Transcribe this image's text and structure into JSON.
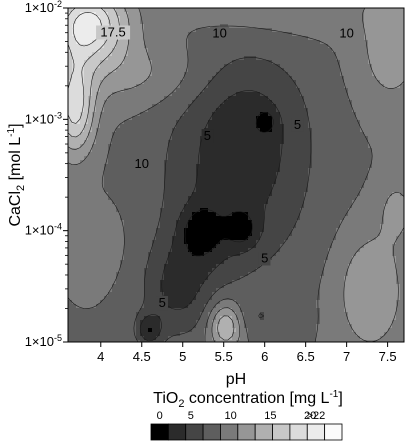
{
  "chart_data": {
    "type": "filled-contour",
    "title": "",
    "xlabel": "pH",
    "ylabel": "CaCl₂ [mol L⁻¹]",
    "ylabel_text": "CaCl",
    "ylabel_sub": "2",
    "ylabel_unit": " [mol L",
    "ylabel_sup": "-1",
    "ylabel_close": "]",
    "xlim": [
      3.6,
      7.7
    ],
    "x_scale": "linear",
    "ylim": [
      1e-05,
      0.01
    ],
    "y_scale": "log",
    "x_ticks": [
      "4",
      "4.5",
      "5",
      "5.5",
      "6",
      "6.5",
      "7",
      "7.5"
    ],
    "x_tick_values": [
      4,
      4.5,
      5,
      5.5,
      6,
      6.5,
      7,
      7.5
    ],
    "y_ticks": [
      {
        "exp": -5,
        "mant": "1×10",
        "sup": "-5"
      },
      {
        "exp": -4,
        "mant": "1×10",
        "sup": "-4"
      },
      {
        "exp": -3,
        "mant": "1×10",
        "sup": "-3"
      },
      {
        "exp": -2,
        "mant": "1×10",
        "sup": "-2"
      }
    ],
    "contour_labels": [
      {
        "text": "17.5",
        "ph": 4.15,
        "log_cacl2": -2.22
      },
      {
        "text": "10",
        "ph": 5.45,
        "log_cacl2": -2.23
      },
      {
        "text": "10",
        "ph": 7.0,
        "log_cacl2": -2.23
      },
      {
        "text": "10",
        "ph": 4.5,
        "log_cacl2": -3.4
      },
      {
        "text": "5",
        "ph": 5.3,
        "log_cacl2": -3.15
      },
      {
        "text": "5",
        "ph": 6.4,
        "log_cacl2": -3.05
      },
      {
        "text": "5",
        "ph": 6.0,
        "log_cacl2": -4.25
      },
      {
        "text": "5",
        "ph": 4.75,
        "log_cacl2": -4.65
      }
    ],
    "colorbar": {
      "title_prefix": "TiO",
      "title_sub": "2",
      "title_mid": " concentration [mg L",
      "title_sup": "-1",
      "title_suffix": "]",
      "labels": [
        "0",
        "5",
        "10",
        "15",
        "20",
        ">22"
      ],
      "label_values": [
        0,
        5,
        10,
        15,
        20,
        22
      ],
      "levels": [
        0,
        2.5,
        5,
        7.5,
        10,
        12.5,
        15,
        17.5,
        20,
        22,
        24
      ],
      "colors": [
        "#000000",
        "#2b2b2b",
        "#454545",
        "#5e5e5e",
        "#7a7a7a",
        "#969696",
        "#b0b0b0",
        "#c8c8c8",
        "#dcdcdc",
        "#ececec",
        "#fbfbfb"
      ]
    },
    "features": [
      {
        "kind": "minimum",
        "ph": 5.22,
        "log_cacl2": -4.0,
        "value": 0
      },
      {
        "kind": "minimum",
        "ph": 5.73,
        "log_cacl2": -4.0,
        "value": 0
      },
      {
        "kind": "minimum",
        "ph": 6.01,
        "log_cacl2": -3.02,
        "value": 0
      },
      {
        "kind": "minimum",
        "ph": 4.6,
        "log_cacl2": -4.95,
        "value": 0
      },
      {
        "kind": "maximum",
        "ph": 3.95,
        "log_cacl2": -2.05,
        "value": 23
      },
      {
        "kind": "maximum",
        "ph": 3.8,
        "log_cacl2": -3.05,
        "value": 21
      },
      {
        "kind": "maximum",
        "ph": 5.45,
        "log_cacl2": -4.95,
        "value": 19
      }
    ],
    "grid": false,
    "legend": "colorbar-bottom"
  }
}
